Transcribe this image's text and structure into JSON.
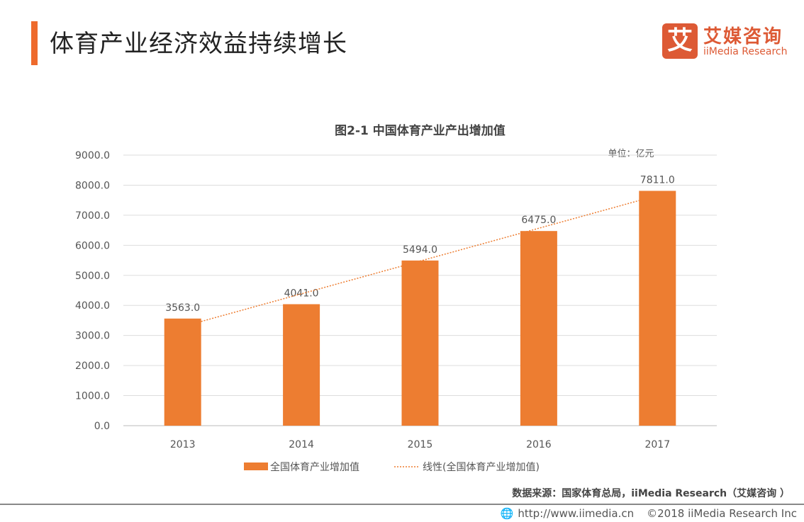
{
  "header": {
    "title": "体育产业经济效益持续增长"
  },
  "logo": {
    "mark": "艾",
    "cn": "艾媒咨询",
    "en": "iiMedia Research"
  },
  "chart_data": {
    "type": "bar",
    "title": "图2-1 中国体育产业产出增加值",
    "unit": "单位：亿元",
    "categories": [
      "2013",
      "2014",
      "2015",
      "2016",
      "2017"
    ],
    "series": [
      {
        "name": "全国体育产业增加值",
        "values": [
          3563.0,
          4041.0,
          5494.0,
          6475.0,
          7811.0
        ]
      }
    ],
    "trendline": {
      "name": "线性(全国体育产业增加值)",
      "type": "linear"
    },
    "yticks": [
      "0.0",
      "1000.0",
      "2000.0",
      "3000.0",
      "4000.0",
      "5000.0",
      "6000.0",
      "7000.0",
      "8000.0",
      "9000.0"
    ],
    "ylim": [
      0,
      9000
    ],
    "grid": true,
    "legend": "bottom",
    "colors": {
      "bar": "#ed7d31",
      "trend": "#ed7d31"
    }
  },
  "footer": {
    "source": "数据来源：国家体育总局，iiMedia Research（艾媒咨询 ）",
    "url": "http://www.iimedia.cn",
    "copyright": "©2018 iiMedia Research Inc"
  }
}
